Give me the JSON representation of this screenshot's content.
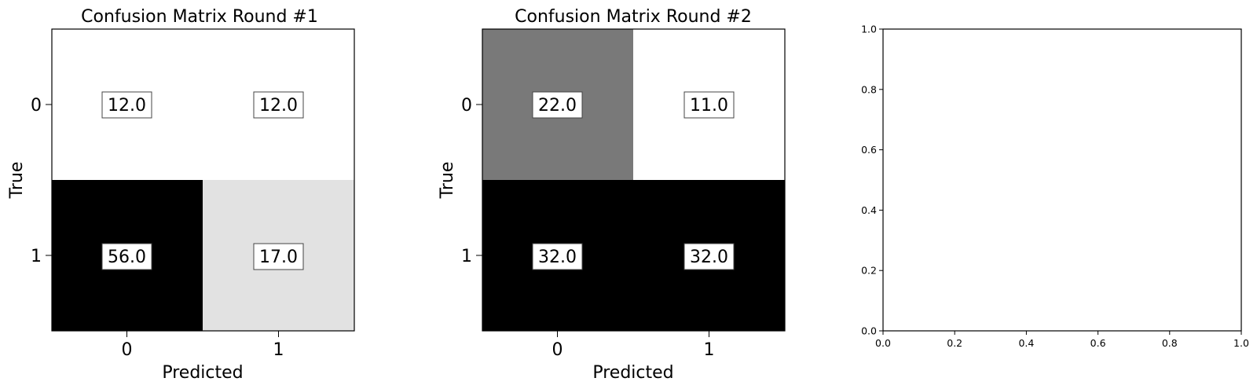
{
  "chart_data": [
    {
      "type": "heatmap",
      "title": "Confusion Matrix Round #1",
      "xlabel": "Predicted",
      "ylabel": "True",
      "x_categories": [
        "0",
        "1"
      ],
      "y_categories": [
        "0",
        "1"
      ],
      "values": [
        [
          12.0,
          12.0
        ],
        [
          56.0,
          17.0
        ]
      ],
      "value_labels": [
        [
          "12.0",
          "12.0"
        ],
        [
          "56.0",
          "17.0"
        ]
      ],
      "colormap": "gray_r"
    },
    {
      "type": "heatmap",
      "title": "Confusion Matrix Round #2",
      "xlabel": "Predicted",
      "ylabel": "True",
      "x_categories": [
        "0",
        "1"
      ],
      "y_categories": [
        "0",
        "1"
      ],
      "values": [
        [
          22.0,
          11.0
        ],
        [
          32.0,
          32.0
        ]
      ],
      "value_labels": [
        [
          "22.0",
          "11.0"
        ],
        [
          "32.0",
          "32.0"
        ]
      ],
      "colormap": "gray_r"
    },
    {
      "type": "scatter",
      "title": "",
      "xlabel": "",
      "ylabel": "",
      "xlim": [
        0.0,
        1.0
      ],
      "ylim": [
        0.0,
        1.0
      ],
      "x_ticks": [
        "0.0",
        "0.2",
        "0.4",
        "0.6",
        "0.8",
        "1.0"
      ],
      "y_ticks": [
        "0.0",
        "0.2",
        "0.4",
        "0.6",
        "0.8",
        "1.0"
      ],
      "series": []
    }
  ]
}
